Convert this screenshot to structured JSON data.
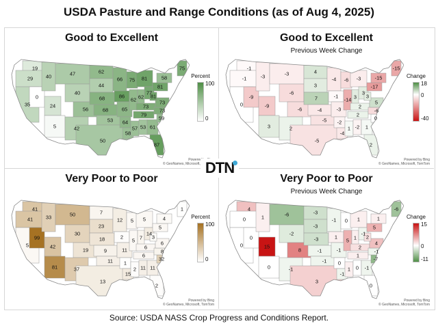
{
  "title": "USDA Pasture and Range Conditions (as of Aug 4, 2025)",
  "source": "Source:  USDA NASS Crop Progress and Conditions Report.",
  "logo_text": "DTN",
  "credit": "Powered by Bing\n© GeoNames, Microsoft, TomTom",
  "colors": {
    "green_dark": "#4f8f46",
    "brown_dark": "#a57121",
    "red_dark": "#c81414",
    "white": "#ffffff"
  },
  "panels": [
    {
      "id": "ge",
      "title": "Good to Excellent",
      "subtitle": "",
      "legend": {
        "title": "Percent",
        "max": "100",
        "mid": "",
        "min": "0",
        "scale": "sequential",
        "color": "#4f8f46",
        "vmin": 0,
        "vmax": 100
      },
      "values": {
        "WA": 19,
        "OR": 29,
        "CA": 35,
        "NV": 0,
        "ID": 40,
        "MT": 47,
        "WY": 40,
        "UT": 24,
        "AZ": 5,
        "CO": 56,
        "NM": 42,
        "ND": 62,
        "SD": 44,
        "NE": 68,
        "KS": 68,
        "OK": 53,
        "TX": 50,
        "MN": 66,
        "IA": 86,
        "MO": 65,
        "AR": 64,
        "LA": 58,
        "WI": 75,
        "IL": 62,
        "MI": 81,
        "IN": 62,
        "OH": 77,
        "KY": 73,
        "TN": 79,
        "MS": 57,
        "AL": 53,
        "GA": 61,
        "FL": 87,
        "SC": 59,
        "NC": 73,
        "VA": 73,
        "WV": 81,
        "PA": 81,
        "NY": 58,
        "ME": 75
      }
    },
    {
      "id": "ge_chg",
      "title": "Good to Excellent",
      "subtitle": "Previous Week Change",
      "legend": {
        "title": "Change",
        "max": "18",
        "mid": "0",
        "min": "-40",
        "scale": "diverging-gr",
        "vmin": -40,
        "vmax": 18
      },
      "values": {
        "WA": -1,
        "OR": -1,
        "CA": 0,
        "NV": -9,
        "ID": -3,
        "MT": -3,
        "WY": -6,
        "UT": -9,
        "AZ": 3,
        "CO": -6,
        "NM": 2,
        "ND": 4,
        "SD": 3,
        "NE": 7,
        "KS": -4,
        "OK": -5,
        "TX": -5,
        "MN": -4,
        "IA": -1,
        "MO": -3,
        "AR": -2,
        "LA": -4,
        "WI": -6,
        "IL": -14,
        "MI": -3,
        "IN": 3,
        "OH": 3,
        "KY": 2,
        "TN": 2,
        "MS": 1,
        "AL": -2,
        "GA": 1,
        "FL": 2,
        "SC": 0,
        "NC": -6,
        "VA": 5,
        "WV": 3,
        "PA": -17,
        "NY": -15,
        "ME": -15
      }
    },
    {
      "id": "vp",
      "title": "Very Poor to Poor",
      "subtitle": "",
      "legend": {
        "title": "Percent",
        "max": "100",
        "mid": "",
        "min": "0",
        "scale": "sequential",
        "color": "#a57121",
        "vmin": 0,
        "vmax": 100
      },
      "values": {
        "WA": 41,
        "OR": 41,
        "CA": 5,
        "NV": 99,
        "ID": 33,
        "MT": 50,
        "WY": 30,
        "UT": 42,
        "AZ": 81,
        "CO": 19,
        "NM": 37,
        "ND": 7,
        "SD": 23,
        "NE": 18,
        "KS": 9,
        "OK": 11,
        "TX": 13,
        "MN": 12,
        "IA": 2,
        "MO": 11,
        "AR": 1,
        "LA": 15,
        "WI": 5,
        "IL": 5,
        "MI": 5,
        "IN": 7,
        "OH": 14,
        "KY": 6,
        "TN": 6,
        "MS": 2,
        "AL": 11,
        "GA": 11,
        "FL": 2,
        "SC": 32,
        "NC": 8,
        "VA": 6,
        "WV": 3,
        "PA": 5,
        "NY": 4,
        "ME": 1
      }
    },
    {
      "id": "vp_chg",
      "title": "Very Poor to Poor",
      "subtitle": "Previous Week Change",
      "legend": {
        "title": "Change",
        "max": "15",
        "mid": "0",
        "min": "-11",
        "scale": "diverging-rg",
        "vmin": -11,
        "vmax": 15
      },
      "values": {
        "WA": 4,
        "OR": 0,
        "CA": 0,
        "NV": 0,
        "ID": 1,
        "MT": -6,
        "WY": -2,
        "UT": 15,
        "AZ": 0,
        "CO": 8,
        "NM": -1,
        "ND": -3,
        "SD": -3,
        "NE": -3,
        "KS": -1,
        "OK": -1,
        "TX": 3,
        "MN": -1,
        "IA": 1,
        "MO": -1,
        "AR": 0,
        "LA": -1,
        "WI": 0,
        "IL": 5,
        "MI": 1,
        "IN": 1,
        "OH": -1,
        "KY": 2,
        "TN": 1,
        "MS": 1,
        "AL": 0,
        "GA": -1,
        "FL": 0,
        "SC": -7,
        "NC": -1,
        "VA": 4,
        "WV": 2,
        "PA": 5,
        "NY": 1,
        "ME": -6
      }
    }
  ]
}
